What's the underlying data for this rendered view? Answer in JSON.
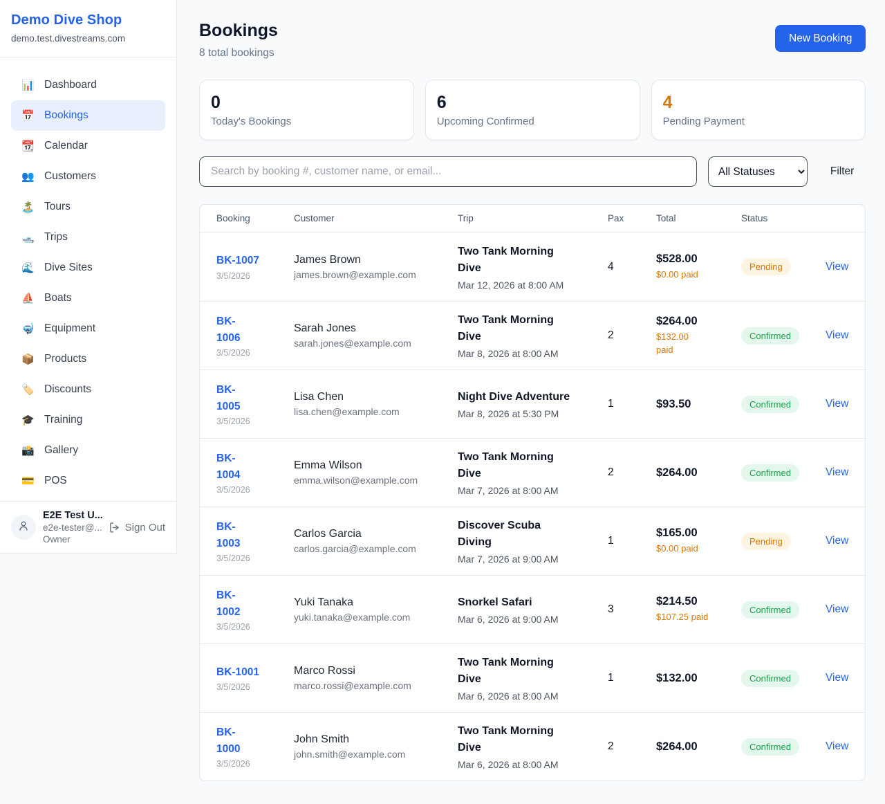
{
  "colors": {
    "accent_blue": "#2563eb",
    "pending_text": "#d97706",
    "pending_bg": "#fdf5e1",
    "confirmed_text": "#16a34a",
    "confirmed_bg": "#e4f7ec",
    "stat_highlight_orange": "#d97706"
  },
  "sidebar": {
    "shop_name": "Demo Dive Shop",
    "domain": "demo.test.divestreams.com",
    "nav": [
      {
        "label": "Dashboard",
        "icon": "📊",
        "active": false
      },
      {
        "label": "Bookings",
        "icon": "📅",
        "active": true
      },
      {
        "label": "Calendar",
        "icon": "📆",
        "active": false
      },
      {
        "label": "Customers",
        "icon": "👥",
        "active": false
      },
      {
        "label": "Tours",
        "icon": "🏝️",
        "active": false
      },
      {
        "label": "Trips",
        "icon": "🛥️",
        "active": false
      },
      {
        "label": "Dive Sites",
        "icon": "🌊",
        "active": false
      },
      {
        "label": "Boats",
        "icon": "⛵",
        "active": false
      },
      {
        "label": "Equipment",
        "icon": "🤿",
        "active": false
      },
      {
        "label": "Products",
        "icon": "📦",
        "active": false
      },
      {
        "label": "Discounts",
        "icon": "🏷️",
        "active": false
      },
      {
        "label": "Training",
        "icon": "🎓",
        "active": false
      },
      {
        "label": "Gallery",
        "icon": "📸",
        "active": false
      },
      {
        "label": "POS",
        "icon": "💳",
        "active": false
      }
    ],
    "user": {
      "name": "E2E Test U...",
      "email": "e2e-tester@...",
      "role": "Owner",
      "sign_out_label": "Sign Out"
    }
  },
  "header": {
    "title": "Bookings",
    "subtitle": "8 total bookings",
    "new_booking_label": "New Booking"
  },
  "stats": [
    {
      "value": "0",
      "label": "Today's Bookings",
      "value_color": "#0f172a"
    },
    {
      "value": "6",
      "label": "Upcoming Confirmed",
      "value_color": "#0f172a"
    },
    {
      "value": "4",
      "label": "Pending Payment",
      "value_color": "#d97706"
    }
  ],
  "filters": {
    "search_placeholder": "Search by booking #, customer name, or email...",
    "status_selected": "All Statuses",
    "filter_label": "Filter"
  },
  "table": {
    "columns": [
      "Booking",
      "Customer",
      "Trip",
      "Pax",
      "Total",
      "Status"
    ],
    "view_label": "View",
    "rows": [
      {
        "id": "BK-1007",
        "date": "3/5/2026",
        "customer": "James Brown",
        "email": "james.brown@example.com",
        "trip": "Two Tank Morning\nDive",
        "datetime": "Mar 12, 2026 at 8:00 AM",
        "pax": "4",
        "total": "$528.00",
        "paid": "$0.00 paid",
        "status": "Pending"
      },
      {
        "id": "BK-\n1006",
        "date": "3/5/2026",
        "customer": "Sarah Jones",
        "email": "sarah.jones@example.com",
        "trip": "Two Tank Morning\nDive",
        "datetime": "Mar 8, 2026 at 8:00 AM",
        "pax": "2",
        "total": "$264.00",
        "paid": "$132.00\npaid",
        "status": "Confirmed"
      },
      {
        "id": "BK-\n1005",
        "date": "3/5/2026",
        "customer": "Lisa Chen",
        "email": "lisa.chen@example.com",
        "trip": "Night Dive Adventure",
        "datetime": "Mar 8, 2026 at 5:30 PM",
        "pax": "1",
        "total": "$93.50",
        "paid": null,
        "status": "Confirmed"
      },
      {
        "id": "BK-\n1004",
        "date": "3/5/2026",
        "customer": "Emma Wilson",
        "email": "emma.wilson@example.com",
        "trip": "Two Tank Morning\nDive",
        "datetime": "Mar 7, 2026 at 8:00 AM",
        "pax": "2",
        "total": "$264.00",
        "paid": null,
        "status": "Confirmed"
      },
      {
        "id": "BK-\n1003",
        "date": "3/5/2026",
        "customer": "Carlos Garcia",
        "email": "carlos.garcia@example.com",
        "trip": "Discover Scuba\nDiving",
        "datetime": "Mar 7, 2026 at 9:00 AM",
        "pax": "1",
        "total": "$165.00",
        "paid": "$0.00 paid",
        "status": "Pending"
      },
      {
        "id": "BK-\n1002",
        "date": "3/5/2026",
        "customer": "Yuki Tanaka",
        "email": "yuki.tanaka@example.com",
        "trip": "Snorkel Safari",
        "datetime": "Mar 6, 2026 at 9:00 AM",
        "pax": "3",
        "total": "$214.50",
        "paid": "$107.25 paid",
        "status": "Confirmed"
      },
      {
        "id": "BK-1001",
        "date": "3/5/2026",
        "customer": "Marco Rossi",
        "email": "marco.rossi@example.com",
        "trip": "Two Tank Morning\nDive",
        "datetime": "Mar 6, 2026 at 8:00 AM",
        "pax": "1",
        "total": "$132.00",
        "paid": null,
        "status": "Confirmed"
      },
      {
        "id": "BK-\n1000",
        "date": "3/5/2026",
        "customer": "John Smith",
        "email": "john.smith@example.com",
        "trip": "Two Tank Morning\nDive",
        "datetime": "Mar 6, 2026 at 8:00 AM",
        "pax": "2",
        "total": "$264.00",
        "paid": null,
        "status": "Confirmed"
      }
    ]
  }
}
